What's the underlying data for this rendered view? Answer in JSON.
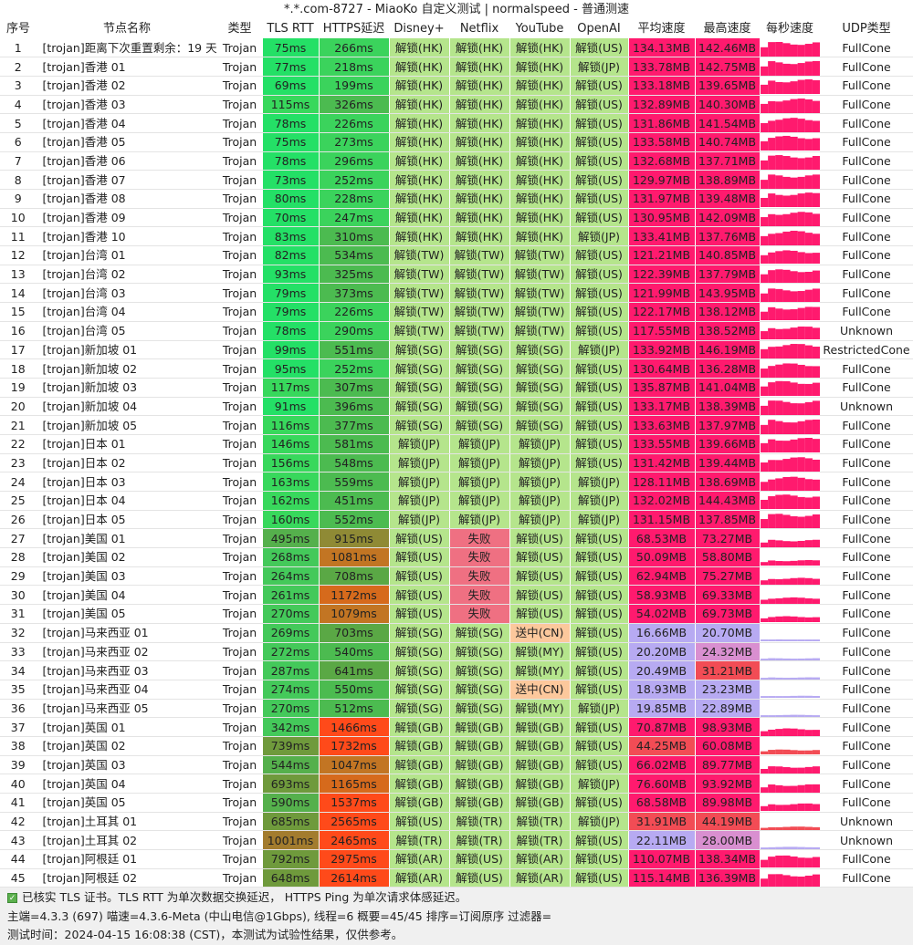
{
  "window": {
    "title": "*.*.com-8727 - MiaoKo 自定义测试 | normalspeed - 普通测速"
  },
  "columns": [
    "序号",
    "节点名称",
    "类型",
    "TLS RTT",
    "HTTPS延迟",
    "Disney+",
    "Netflix",
    "YouTube",
    "OpenAI",
    "平均速度",
    "最高速度",
    "每秒速度",
    "UDP类型"
  ],
  "colors": {
    "pass": "#b5e58c",
    "fail": "#ef7082",
    "sending": "#fcc89c",
    "fast": "#ff1a6e",
    "mid": "#f24c55",
    "slow": "#b7aaf2"
  },
  "rows": [
    [
      "1",
      "[trojan]距离下次重置剩余：19 天",
      "Trojan",
      "75ms",
      "266ms",
      "解锁(HK)",
      "解锁(HK)",
      "解锁(HK)",
      "解锁(US)",
      "134.13MB",
      "142.46MB",
      "FullCone"
    ],
    [
      "2",
      "[trojan]香港 01",
      "Trojan",
      "77ms",
      "218ms",
      "解锁(HK)",
      "解锁(HK)",
      "解锁(HK)",
      "解锁(JP)",
      "133.78MB",
      "142.75MB",
      "FullCone"
    ],
    [
      "3",
      "[trojan]香港 02",
      "Trojan",
      "69ms",
      "199ms",
      "解锁(HK)",
      "解锁(HK)",
      "解锁(HK)",
      "解锁(US)",
      "133.18MB",
      "139.65MB",
      "FullCone"
    ],
    [
      "4",
      "[trojan]香港 03",
      "Trojan",
      "115ms",
      "326ms",
      "解锁(HK)",
      "解锁(HK)",
      "解锁(HK)",
      "解锁(US)",
      "132.89MB",
      "140.30MB",
      "FullCone"
    ],
    [
      "5",
      "[trojan]香港 04",
      "Trojan",
      "78ms",
      "226ms",
      "解锁(HK)",
      "解锁(HK)",
      "解锁(HK)",
      "解锁(US)",
      "131.86MB",
      "141.54MB",
      "FullCone"
    ],
    [
      "6",
      "[trojan]香港 05",
      "Trojan",
      "75ms",
      "273ms",
      "解锁(HK)",
      "解锁(HK)",
      "解锁(HK)",
      "解锁(US)",
      "133.58MB",
      "140.74MB",
      "FullCone"
    ],
    [
      "7",
      "[trojan]香港 06",
      "Trojan",
      "78ms",
      "296ms",
      "解锁(HK)",
      "解锁(HK)",
      "解锁(HK)",
      "解锁(US)",
      "132.68MB",
      "137.71MB",
      "FullCone"
    ],
    [
      "8",
      "[trojan]香港 07",
      "Trojan",
      "73ms",
      "252ms",
      "解锁(HK)",
      "解锁(HK)",
      "解锁(HK)",
      "解锁(US)",
      "129.97MB",
      "138.89MB",
      "FullCone"
    ],
    [
      "9",
      "[trojan]香港 08",
      "Trojan",
      "80ms",
      "228ms",
      "解锁(HK)",
      "解锁(HK)",
      "解锁(HK)",
      "解锁(US)",
      "131.97MB",
      "139.48MB",
      "FullCone"
    ],
    [
      "10",
      "[trojan]香港 09",
      "Trojan",
      "70ms",
      "247ms",
      "解锁(HK)",
      "解锁(HK)",
      "解锁(HK)",
      "解锁(US)",
      "130.95MB",
      "142.09MB",
      "FullCone"
    ],
    [
      "11",
      "[trojan]香港 10",
      "Trojan",
      "83ms",
      "310ms",
      "解锁(HK)",
      "解锁(HK)",
      "解锁(HK)",
      "解锁(JP)",
      "133.41MB",
      "137.76MB",
      "FullCone"
    ],
    [
      "12",
      "[trojan]台湾 01",
      "Trojan",
      "82ms",
      "534ms",
      "解锁(TW)",
      "解锁(TW)",
      "解锁(TW)",
      "解锁(US)",
      "121.21MB",
      "140.85MB",
      "FullCone"
    ],
    [
      "13",
      "[trojan]台湾 02",
      "Trojan",
      "93ms",
      "325ms",
      "解锁(TW)",
      "解锁(TW)",
      "解锁(TW)",
      "解锁(US)",
      "122.39MB",
      "137.79MB",
      "FullCone"
    ],
    [
      "14",
      "[trojan]台湾 03",
      "Trojan",
      "79ms",
      "373ms",
      "解锁(TW)",
      "解锁(TW)",
      "解锁(TW)",
      "解锁(US)",
      "121.99MB",
      "143.95MB",
      "FullCone"
    ],
    [
      "15",
      "[trojan]台湾 04",
      "Trojan",
      "79ms",
      "226ms",
      "解锁(TW)",
      "解锁(TW)",
      "解锁(TW)",
      "解锁(US)",
      "122.17MB",
      "138.12MB",
      "FullCone"
    ],
    [
      "16",
      "[trojan]台湾 05",
      "Trojan",
      "78ms",
      "290ms",
      "解锁(TW)",
      "解锁(TW)",
      "解锁(TW)",
      "解锁(US)",
      "117.55MB",
      "138.52MB",
      "Unknown"
    ],
    [
      "17",
      "[trojan]新加坡 01",
      "Trojan",
      "99ms",
      "551ms",
      "解锁(SG)",
      "解锁(SG)",
      "解锁(SG)",
      "解锁(JP)",
      "133.92MB",
      "146.19MB",
      "RestrictedCone"
    ],
    [
      "18",
      "[trojan]新加坡 02",
      "Trojan",
      "95ms",
      "252ms",
      "解锁(SG)",
      "解锁(SG)",
      "解锁(SG)",
      "解锁(US)",
      "130.64MB",
      "136.28MB",
      "FullCone"
    ],
    [
      "19",
      "[trojan]新加坡 03",
      "Trojan",
      "117ms",
      "307ms",
      "解锁(SG)",
      "解锁(SG)",
      "解锁(SG)",
      "解锁(US)",
      "135.87MB",
      "141.04MB",
      "FullCone"
    ],
    [
      "20",
      "[trojan]新加坡 04",
      "Trojan",
      "91ms",
      "396ms",
      "解锁(SG)",
      "解锁(SG)",
      "解锁(SG)",
      "解锁(US)",
      "133.17MB",
      "138.39MB",
      "Unknown"
    ],
    [
      "21",
      "[trojan]新加坡 05",
      "Trojan",
      "116ms",
      "377ms",
      "解锁(SG)",
      "解锁(SG)",
      "解锁(SG)",
      "解锁(US)",
      "133.63MB",
      "137.97MB",
      "FullCone"
    ],
    [
      "22",
      "[trojan]日本 01",
      "Trojan",
      "146ms",
      "581ms",
      "解锁(JP)",
      "解锁(JP)",
      "解锁(JP)",
      "解锁(US)",
      "133.55MB",
      "139.66MB",
      "FullCone"
    ],
    [
      "23",
      "[trojan]日本 02",
      "Trojan",
      "156ms",
      "548ms",
      "解锁(JP)",
      "解锁(JP)",
      "解锁(JP)",
      "解锁(US)",
      "131.42MB",
      "139.44MB",
      "FullCone"
    ],
    [
      "24",
      "[trojan]日本 03",
      "Trojan",
      "163ms",
      "559ms",
      "解锁(JP)",
      "解锁(JP)",
      "解锁(JP)",
      "解锁(JP)",
      "128.11MB",
      "138.69MB",
      "FullCone"
    ],
    [
      "25",
      "[trojan]日本 04",
      "Trojan",
      "162ms",
      "451ms",
      "解锁(JP)",
      "解锁(JP)",
      "解锁(JP)",
      "解锁(JP)",
      "132.02MB",
      "144.43MB",
      "FullCone"
    ],
    [
      "26",
      "[trojan]日本 05",
      "Trojan",
      "160ms",
      "552ms",
      "解锁(JP)",
      "解锁(JP)",
      "解锁(JP)",
      "解锁(JP)",
      "131.15MB",
      "137.85MB",
      "FullCone"
    ],
    [
      "27",
      "[trojan]美国 01",
      "Trojan",
      "495ms",
      "915ms",
      "解锁(US)",
      "失败",
      "解锁(US)",
      "解锁(US)",
      "68.53MB",
      "73.27MB",
      "FullCone"
    ],
    [
      "28",
      "[trojan]美国 02",
      "Trojan",
      "268ms",
      "1081ms",
      "解锁(US)",
      "失败",
      "解锁(US)",
      "解锁(US)",
      "50.09MB",
      "58.80MB",
      "FullCone"
    ],
    [
      "29",
      "[trojan]美国 03",
      "Trojan",
      "264ms",
      "708ms",
      "解锁(US)",
      "失败",
      "解锁(US)",
      "解锁(US)",
      "62.94MB",
      "75.27MB",
      "FullCone"
    ],
    [
      "30",
      "[trojan]美国 04",
      "Trojan",
      "261ms",
      "1172ms",
      "解锁(US)",
      "失败",
      "解锁(US)",
      "解锁(US)",
      "58.93MB",
      "69.33MB",
      "FullCone"
    ],
    [
      "31",
      "[trojan]美国 05",
      "Trojan",
      "270ms",
      "1079ms",
      "解锁(US)",
      "失败",
      "解锁(US)",
      "解锁(US)",
      "54.02MB",
      "69.73MB",
      "FullCone"
    ],
    [
      "32",
      "[trojan]马来西亚 01",
      "Trojan",
      "269ms",
      "703ms",
      "解锁(SG)",
      "解锁(SG)",
      "送中(CN)",
      "解锁(US)",
      "16.66MB",
      "20.70MB",
      "FullCone"
    ],
    [
      "33",
      "[trojan]马来西亚 02",
      "Trojan",
      "272ms",
      "540ms",
      "解锁(SG)",
      "解锁(SG)",
      "解锁(MY)",
      "解锁(US)",
      "20.20MB",
      "24.32MB",
      "FullCone"
    ],
    [
      "34",
      "[trojan]马来西亚 03",
      "Trojan",
      "287ms",
      "641ms",
      "解锁(SG)",
      "解锁(SG)",
      "解锁(MY)",
      "解锁(US)",
      "20.49MB",
      "31.21MB",
      "FullCone"
    ],
    [
      "35",
      "[trojan]马来西亚 04",
      "Trojan",
      "274ms",
      "550ms",
      "解锁(SG)",
      "解锁(SG)",
      "送中(CN)",
      "解锁(US)",
      "18.93MB",
      "23.23MB",
      "FullCone"
    ],
    [
      "36",
      "[trojan]马来西亚 05",
      "Trojan",
      "270ms",
      "512ms",
      "解锁(SG)",
      "解锁(SG)",
      "解锁(MY)",
      "解锁(JP)",
      "19.85MB",
      "22.89MB",
      "FullCone"
    ],
    [
      "37",
      "[trojan]英国 01",
      "Trojan",
      "342ms",
      "1466ms",
      "解锁(GB)",
      "解锁(GB)",
      "解锁(GB)",
      "解锁(US)",
      "70.87MB",
      "98.93MB",
      "FullCone"
    ],
    [
      "38",
      "[trojan]英国 02",
      "Trojan",
      "739ms",
      "1732ms",
      "解锁(GB)",
      "解锁(GB)",
      "解锁(GB)",
      "解锁(US)",
      "44.25MB",
      "60.08MB",
      "FullCone"
    ],
    [
      "39",
      "[trojan]英国 03",
      "Trojan",
      "544ms",
      "1047ms",
      "解锁(GB)",
      "解锁(GB)",
      "解锁(GB)",
      "解锁(US)",
      "66.02MB",
      "89.77MB",
      "FullCone"
    ],
    [
      "40",
      "[trojan]英国 04",
      "Trojan",
      "693ms",
      "1165ms",
      "解锁(GB)",
      "解锁(GB)",
      "解锁(GB)",
      "解锁(JP)",
      "76.60MB",
      "93.92MB",
      "FullCone"
    ],
    [
      "41",
      "[trojan]英国 05",
      "Trojan",
      "590ms",
      "1537ms",
      "解锁(GB)",
      "解锁(GB)",
      "解锁(GB)",
      "解锁(US)",
      "68.58MB",
      "89.98MB",
      "FullCone"
    ],
    [
      "42",
      "[trojan]土耳其 01",
      "Trojan",
      "685ms",
      "2565ms",
      "解锁(US)",
      "解锁(TR)",
      "解锁(TR)",
      "解锁(JP)",
      "31.91MB",
      "44.19MB",
      "Unknown"
    ],
    [
      "43",
      "[trojan]土耳其 02",
      "Trojan",
      "1001ms",
      "2465ms",
      "解锁(TR)",
      "解锁(TR)",
      "解锁(TR)",
      "解锁(US)",
      "22.11MB",
      "28.00MB",
      "Unknown"
    ],
    [
      "44",
      "[trojan]阿根廷 01",
      "Trojan",
      "792ms",
      "2975ms",
      "解锁(AR)",
      "解锁(US)",
      "解锁(AR)",
      "解锁(US)",
      "110.07MB",
      "138.34MB",
      "FullCone"
    ],
    [
      "45",
      "[trojan]阿根廷 02",
      "Trojan",
      "648ms",
      "2614ms",
      "解锁(AR)",
      "解锁(US)",
      "解锁(AR)",
      "解锁(US)",
      "115.14MB",
      "136.39MB",
      "FullCone"
    ]
  ],
  "footer": {
    "line1": "已核实 TLS 证书。TLS RTT 为单次数据交换延迟， HTTPS Ping 为单次请求体感延迟。",
    "line2": "主端=4.3.3 (697) 喵速=4.3.6-Meta (中山电信@1Gbps), 线程=6 概要=45/45 排序=订阅原序 过滤器=",
    "line3": "测试时间：2024-04-15 16:08:38 (CST)，本测试为试验性结果，仅供参考。"
  }
}
